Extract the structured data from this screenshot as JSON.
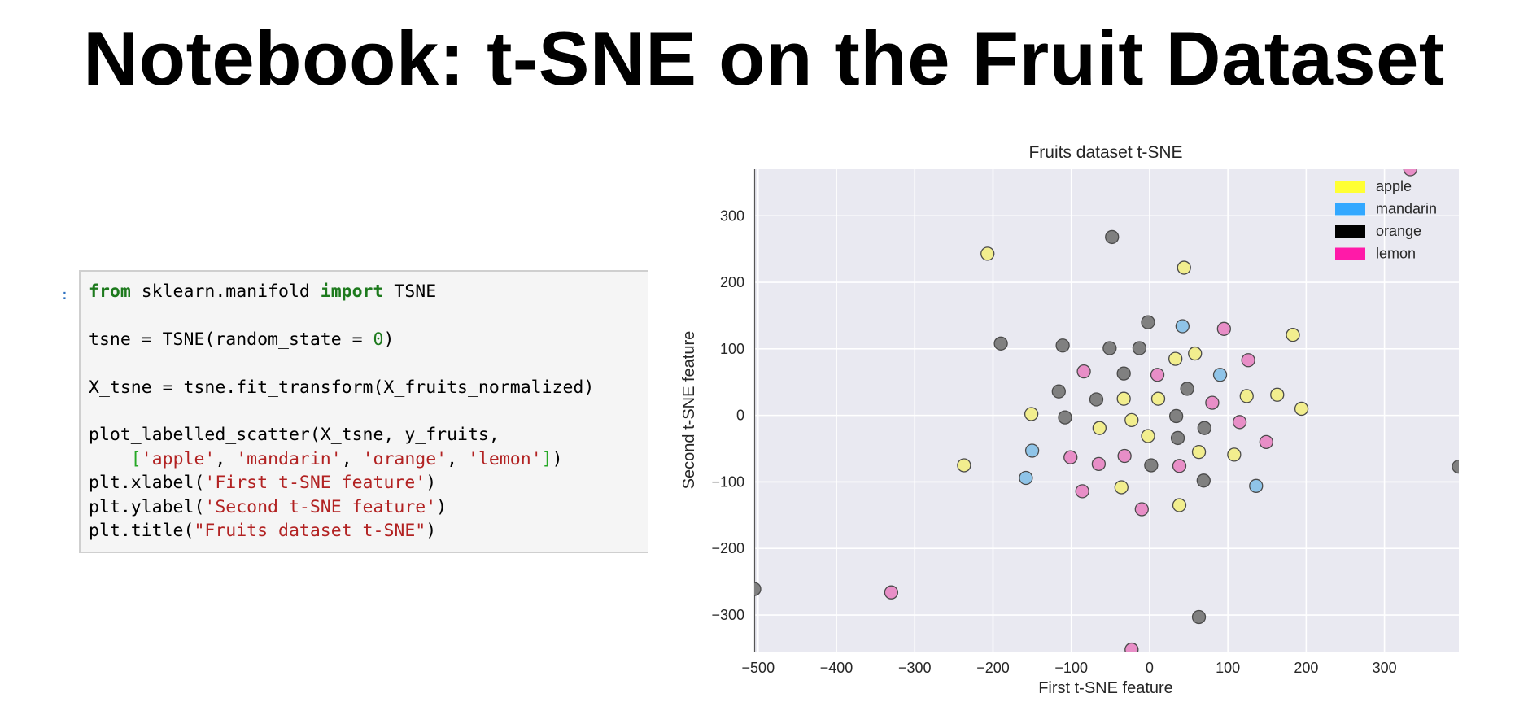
{
  "page": {
    "title": "Notebook: t-SNE on the Fruit Dataset"
  },
  "notebook": {
    "prompt": ":",
    "cell_lines": [
      [
        {
          "t": "from",
          "c": "kw"
        },
        {
          "t": " sklearn.manifold "
        },
        {
          "t": "import",
          "c": "kw"
        },
        {
          "t": " TSNE"
        }
      ],
      [],
      [
        {
          "t": "tsne = TSNE(random_state = "
        },
        {
          "t": "0",
          "c": "num"
        },
        {
          "t": ")"
        }
      ],
      [],
      [
        {
          "t": "X_tsne = tsne.fit_transform(X_fruits_normalized)"
        }
      ],
      [],
      [
        {
          "t": "plot_labelled_scatter(X_tsne, y_fruits,"
        }
      ],
      [
        {
          "t": "    "
        },
        {
          "t": "[",
          "c": "brk"
        },
        {
          "t": "'apple'",
          "c": "str"
        },
        {
          "t": ", "
        },
        {
          "t": "'mandarin'",
          "c": "str"
        },
        {
          "t": ", "
        },
        {
          "t": "'orange'",
          "c": "str"
        },
        {
          "t": ", "
        },
        {
          "t": "'lemon'",
          "c": "str"
        },
        {
          "t": "]",
          "c": "brk"
        },
        {
          "t": ")"
        }
      ],
      [
        {
          "t": "plt.xlabel("
        },
        {
          "t": "'First t-SNE feature'",
          "c": "str"
        },
        {
          "t": ")"
        }
      ],
      [
        {
          "t": "plt.ylabel("
        },
        {
          "t": "'Second t-SNE feature'",
          "c": "str"
        },
        {
          "t": ")"
        }
      ],
      [
        {
          "t": "plt.title("
        },
        {
          "t": "\"Fruits dataset t-SNE\"",
          "c": "str"
        },
        {
          "t": ")"
        }
      ]
    ]
  },
  "chart_data": {
    "type": "scatter",
    "title": "Fruits dataset t-SNE",
    "xlabel": "First t-SNE feature",
    "ylabel": "Second t-SNE feature",
    "xlim": [
      -505,
      395
    ],
    "ylim": [
      -355,
      370
    ],
    "xticks": [
      -500,
      -400,
      -300,
      -200,
      -100,
      0,
      100,
      200,
      300
    ],
    "yticks": [
      -300,
      -200,
      -100,
      0,
      100,
      200,
      300
    ],
    "grid": true,
    "legend_position": "top-right",
    "plot_background": "#e9e9f1",
    "series": [
      {
        "name": "apple",
        "color": "#f2ee8e",
        "legend_color": "#ffff33",
        "points": [
          [
            -207,
            243
          ],
          [
            44,
            222
          ],
          [
            -237,
            -75
          ],
          [
            33,
            85
          ],
          [
            -151,
            2
          ],
          [
            -33,
            25
          ],
          [
            11,
            25
          ],
          [
            -64,
            -19
          ],
          [
            -23,
            -7
          ],
          [
            -2,
            -31
          ],
          [
            58,
            93
          ],
          [
            183,
            121
          ],
          [
            124,
            29
          ],
          [
            163,
            31
          ],
          [
            194,
            10
          ],
          [
            -36,
            -108
          ],
          [
            38,
            -135
          ],
          [
            108,
            -59
          ],
          [
            63,
            -55
          ]
        ]
      },
      {
        "name": "mandarin",
        "color": "#8fc4e8",
        "legend_color": "#33a8ff",
        "points": [
          [
            42,
            134
          ],
          [
            90,
            61
          ],
          [
            -150,
            -53
          ],
          [
            -158,
            -94
          ],
          [
            136,
            -106
          ]
        ]
      },
      {
        "name": "orange",
        "color": "#808080",
        "legend_color": "#000000",
        "points": [
          [
            -48,
            268
          ],
          [
            -2,
            140
          ],
          [
            -190,
            108
          ],
          [
            -111,
            105
          ],
          [
            -51,
            101
          ],
          [
            -13,
            101
          ],
          [
            -33,
            63
          ],
          [
            48,
            40
          ],
          [
            -116,
            36
          ],
          [
            -68,
            24
          ],
          [
            -108,
            -3
          ],
          [
            34,
            -1
          ],
          [
            70,
            -19
          ],
          [
            36,
            -34
          ],
          [
            2,
            -75
          ],
          [
            69,
            -98
          ],
          [
            -505,
            -261
          ],
          [
            395,
            -77
          ],
          [
            63,
            -303
          ]
        ]
      },
      {
        "name": "lemon",
        "color": "#e88ec7",
        "legend_color": "#ff1aa8",
        "points": [
          [
            95,
            130
          ],
          [
            333,
            370
          ],
          [
            126,
            83
          ],
          [
            -84,
            66
          ],
          [
            10,
            61
          ],
          [
            80,
            19
          ],
          [
            115,
            -10
          ],
          [
            149,
            -40
          ],
          [
            -101,
            -63
          ],
          [
            -65,
            -73
          ],
          [
            -32,
            -61
          ],
          [
            38,
            -76
          ],
          [
            -86,
            -114
          ],
          [
            -10,
            -141
          ],
          [
            -330,
            -266
          ],
          [
            -23,
            -352
          ]
        ]
      }
    ]
  }
}
